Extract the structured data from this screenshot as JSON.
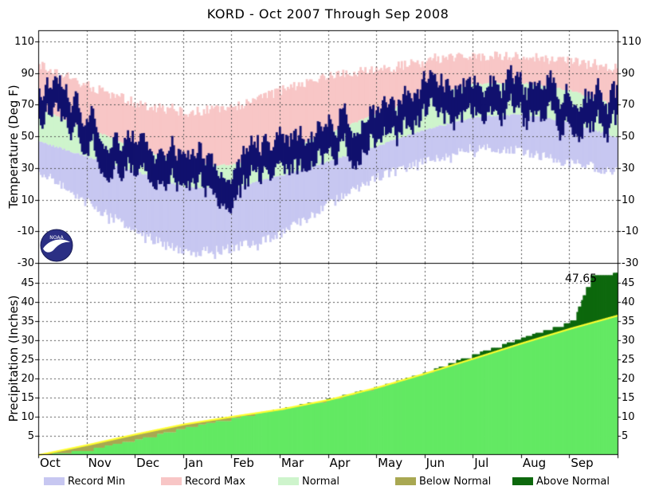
{
  "title": "KORD - Oct 2007 Through Sep 2008",
  "temperature_panel": {
    "ylabel": "Temperature (Deg F)",
    "yticks": [
      -30,
      -10,
      10,
      30,
      50,
      70,
      90,
      110
    ]
  },
  "precipitation_panel": {
    "ylabel": "Precipitation (Inches)",
    "yticks": [
      5,
      10,
      15,
      20,
      25,
      30,
      35,
      40,
      45
    ],
    "annotation": "47.65"
  },
  "x_axis": {
    "months": [
      "Oct",
      "Nov",
      "Dec",
      "Jan",
      "Feb",
      "Mar",
      "Apr",
      "May",
      "Jun",
      "Jul",
      "Aug",
      "Sep"
    ]
  },
  "legend": {
    "items": [
      {
        "label": "Record Min",
        "color_key": "record_min"
      },
      {
        "label": "Record Max",
        "color_key": "record_max"
      },
      {
        "label": "Normal",
        "color_key": "normal_band"
      },
      {
        "label": "Below Normal",
        "color_key": "below_normal"
      },
      {
        "label": "Above Normal",
        "color_key": "above_normal"
      }
    ]
  },
  "logo": {
    "text": "NOAA"
  },
  "colors": {
    "record_min": "#c7c7f1",
    "record_max": "#f8c6c6",
    "normal_band": "#cef4cc",
    "daily_trace": "#11116e",
    "actual_precip": "#63e963",
    "normal_precip_line": "#ffff2e",
    "below_normal": "#a9a852",
    "above_normal": "#0d680d",
    "grid": "#555555",
    "frame": "#000000"
  },
  "chart_data": [
    {
      "type": "area",
      "panel": "temperature",
      "ylabel": "Temperature (Deg F)",
      "ylim": [
        -30,
        117
      ],
      "yticks": [
        -30,
        -10,
        10,
        30,
        50,
        70,
        90,
        110
      ],
      "categories": [
        "Oct",
        "Nov",
        "Dec",
        "Jan",
        "Feb",
        "Mar",
        "Apr",
        "May",
        "Jun",
        "Jul",
        "Aug",
        "Sep"
      ],
      "grid": true,
      "series": [
        {
          "name": "Record Max",
          "role": "record_max",
          "month_start_values": [
            95,
            82,
            71,
            65,
            68,
            79,
            88,
            92,
            97,
            101,
            100,
            97
          ],
          "end_value": 93,
          "jitter": 3.2
        },
        {
          "name": "Normal High",
          "role": "normal_high",
          "month_start_values": [
            67,
            55,
            43,
            32,
            32,
            41,
            52,
            64,
            75,
            83,
            84,
            79
          ],
          "end_value": 69,
          "jitter": 0.7
        },
        {
          "name": "Normal Low",
          "role": "normal_low",
          "month_start_values": [
            47,
            37,
            28,
            18,
            17,
            25,
            34,
            44,
            54,
            62,
            64,
            59
          ],
          "end_value": 49,
          "jitter": 0.7
        },
        {
          "name": "Record Min",
          "role": "record_min",
          "month_start_values": [
            28,
            8,
            -10,
            -24,
            -21,
            -12,
            7,
            24,
            34,
            43,
            41,
            33
          ],
          "end_value": 28,
          "jitter": 3.2
        },
        {
          "name": "Daily High/Low",
          "role": "actual",
          "mean_month_start": [
            78,
            52,
            37,
            29,
            23,
            35,
            47,
            58,
            70,
            77,
            77,
            71
          ],
          "end_mean": 62,
          "half_range": 7.5,
          "volatility": 7
        }
      ]
    },
    {
      "type": "area",
      "panel": "precipitation",
      "ylabel": "Precipitation (Inches)",
      "ylim": [
        0,
        50.2
      ],
      "yticks": [
        5,
        10,
        15,
        20,
        25,
        30,
        35,
        40,
        45
      ],
      "categories": [
        "Oct",
        "Nov",
        "Dec",
        "Jan",
        "Feb",
        "Mar",
        "Apr",
        "May",
        "Jun",
        "Jul",
        "Aug",
        "Sep"
      ],
      "grid": true,
      "annotation": {
        "text": "47.65",
        "value": 47.65
      },
      "season_total": 47.65,
      "series": [
        {
          "name": "Normal cumulative",
          "role": "normal_cum",
          "month_start_cum": [
            0,
            2.6,
            5.4,
            8.0,
            10.0,
            11.9,
            14.4,
            17.6,
            21.3,
            25.2,
            29.2,
            33.0
          ],
          "end_cum": 36.5
        },
        {
          "name": "Actual cumulative",
          "role": "actual_cum",
          "month_start_cum": [
            0,
            1.5,
            4.1,
            7.2,
            9.7,
            12.2,
            14.8,
            17.9,
            21.7,
            26.4,
            30.7,
            34.9
          ],
          "sep_detail": {
            "days": [
              335,
              339,
              341,
              343,
              345,
              347,
              349,
              352,
              365
            ],
            "values": [
              34.9,
              36.0,
              38.8,
              40.5,
              43.0,
              44.8,
              47.0,
              47.4,
              47.65
            ]
          },
          "end_cum": 47.65
        }
      ]
    }
  ]
}
